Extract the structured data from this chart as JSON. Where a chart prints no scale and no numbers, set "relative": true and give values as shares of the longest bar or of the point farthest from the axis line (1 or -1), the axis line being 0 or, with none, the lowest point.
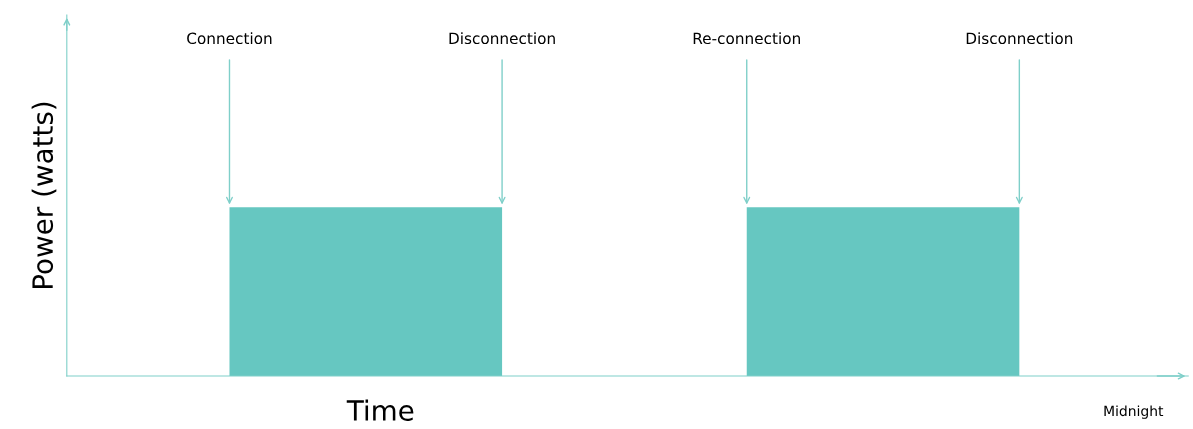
{
  "chart_data": {
    "type": "bar",
    "relative": true,
    "xlabel": "Time",
    "ylabel": "Power (watts)",
    "categories": [
      null,
      null
    ],
    "values": [
      1,
      1
    ],
    "color": "#66c7c1",
    "annotations": [
      "Connection",
      "Disconnection",
      "Re-connection",
      "Disconnection",
      "Midnight"
    ]
  }
}
